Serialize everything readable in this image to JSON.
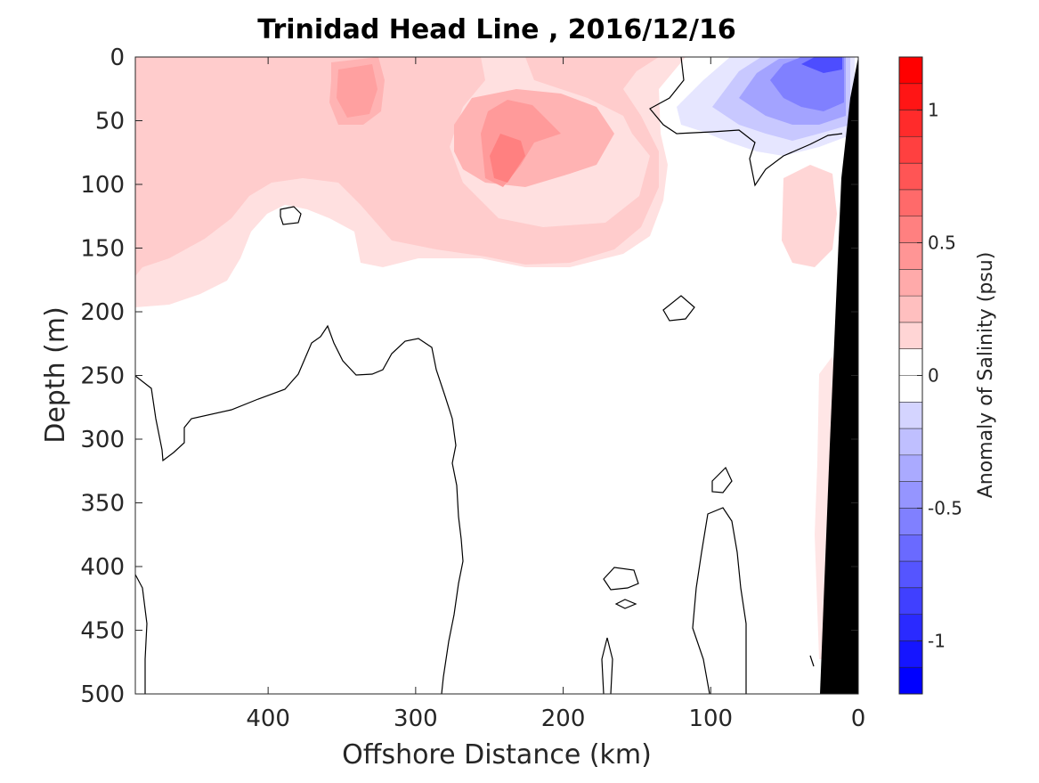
{
  "chart_data": {
    "type": "heatmap",
    "title": "Trinidad Head Line , 2016/12/16",
    "xlabel": "Offshore Distance (km)",
    "ylabel": "Depth (m)",
    "colorbar_label": "Anomaly of Salinity (psu)",
    "xlim": [
      490,
      0
    ],
    "ylim": [
      0,
      500
    ],
    "x_direction": "reversed",
    "y_direction": "reversed (depth increases downward)",
    "x_ticks": [
      400,
      300,
      200,
      100,
      0
    ],
    "y_ticks": [
      0,
      50,
      100,
      150,
      200,
      250,
      300,
      350,
      400,
      450,
      500
    ],
    "colorbar_ticks": [
      1,
      0.5,
      0,
      -0.5,
      -1
    ],
    "colorbar_range": [
      -1.2,
      1.2
    ],
    "colorbar_levels": 24,
    "colormap": {
      "negative": "#0000ff",
      "zero": "#ffffff",
      "positive": "#ff0000"
    },
    "seafloor_color": "#000000",
    "contour_level": 0,
    "features": [
      {
        "label": "positive anomaly, upper layer",
        "x_range": [
          490,
          0
        ],
        "depth_range": [
          0,
          190
        ],
        "value": 0.2
      },
      {
        "label": "positive core",
        "x": 338,
        "depth": 30,
        "value": 0.35
      },
      {
        "label": "positive core",
        "x": 240,
        "depth": 85,
        "value": 0.45
      },
      {
        "label": "negative anomaly near coast",
        "x": 30,
        "depth": 20,
        "value": -0.6
      },
      {
        "label": "near-zero anomaly, deep layer",
        "depth_range": [
          200,
          500
        ],
        "value": 0.0
      }
    ]
  }
}
